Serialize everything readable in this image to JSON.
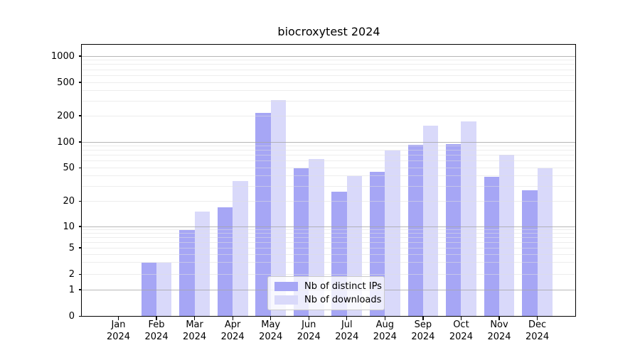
{
  "chart_data": {
    "type": "bar",
    "title": "biocroxytest 2024",
    "categories": [
      "Jan",
      "Feb",
      "Mar",
      "Apr",
      "May",
      "Jun",
      "Jul",
      "Aug",
      "Sep",
      "Oct",
      "Nov",
      "Dec"
    ],
    "category_year": "2024",
    "series": [
      {
        "name": "Nb of distinct IPs",
        "color": "#a6a6f5",
        "values": [
          0,
          3,
          9,
          17,
          215,
          50,
          26,
          45,
          92,
          95,
          39,
          27
        ]
      },
      {
        "name": "Nb of downloads",
        "color": "#d9d9fa",
        "values": [
          0,
          3,
          15,
          35,
          310,
          63,
          40,
          80,
          155,
          172,
          71,
          50
        ]
      }
    ],
    "yticks": [
      0,
      1,
      2,
      5,
      10,
      20,
      50,
      100,
      200,
      500,
      1000
    ],
    "yscale": "log-with-zero-baseline",
    "ylim": [
      0,
      1300
    ],
    "xlabel": "",
    "ylabel": "",
    "grid": true,
    "legend": {
      "labels": [
        "Nb of distinct IPs",
        "Nb of downloads"
      ],
      "position": "lower center"
    }
  }
}
